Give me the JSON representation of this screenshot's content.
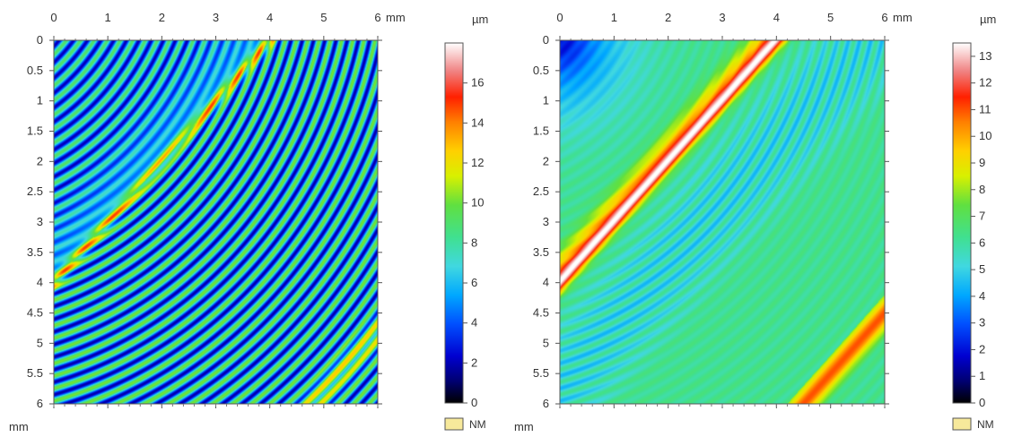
{
  "chart_data": [
    {
      "type": "heatmap",
      "title": "",
      "x_unit": "mm",
      "y_unit": "mm",
      "xlim": [
        0,
        6
      ],
      "ylim": [
        0,
        6
      ],
      "x_ticks": [
        "0",
        "1",
        "2",
        "3",
        "4",
        "5",
        "6"
      ],
      "y_ticks": [
        "0",
        "0.5",
        "1",
        "1.5",
        "2",
        "2.5",
        "3",
        "3.5",
        "4",
        "4.5",
        "5",
        "5.5",
        "6"
      ],
      "colorbar": {
        "unit": "µm",
        "range": [
          0,
          18
        ],
        "ticks": [
          "0",
          "2",
          "4",
          "6",
          "8",
          "10",
          "12",
          "14",
          "16"
        ],
        "nm_label": "NM"
      },
      "features": {
        "ridge_line": {
          "from": [
            4,
            0
          ],
          "to": [
            0,
            4
          ],
          "peak_um": 15
        },
        "corner_ridge_start_mm": 5.2,
        "ring_center_mm": [
          -2,
          -2
        ],
        "ring_period_mm": 0.2
      },
      "colors": {
        "nm_swatch": "#f7e99b"
      }
    },
    {
      "type": "heatmap",
      "title": "",
      "x_unit": "mm",
      "y_unit": "mm",
      "xlim": [
        0,
        6
      ],
      "ylim": [
        0,
        6
      ],
      "x_ticks": [
        "0",
        "1",
        "2",
        "3",
        "4",
        "5",
        "6"
      ],
      "y_ticks": [
        "0",
        "0.5",
        "1",
        "1.5",
        "2",
        "2.5",
        "3",
        "3.5",
        "4",
        "4.5",
        "5",
        "5.5",
        "6"
      ],
      "colorbar": {
        "unit": "µm",
        "range": [
          0,
          13.5
        ],
        "ticks": [
          "0",
          "1",
          "2",
          "3",
          "4",
          "5",
          "6",
          "7",
          "8",
          "9",
          "10",
          "11",
          "12",
          "13"
        ],
        "nm_label": "NM"
      },
      "features": {
        "ridge_line": {
          "from": [
            4,
            0
          ],
          "to": [
            0,
            4
          ],
          "peak_um": 12
        },
        "corner_ridge_start_mm": 5.1,
        "ring_center_mm": [
          -2,
          -2
        ],
        "ring_period_mm": 0.2
      },
      "colors": {
        "nm_swatch": "#f7e99b"
      }
    }
  ]
}
